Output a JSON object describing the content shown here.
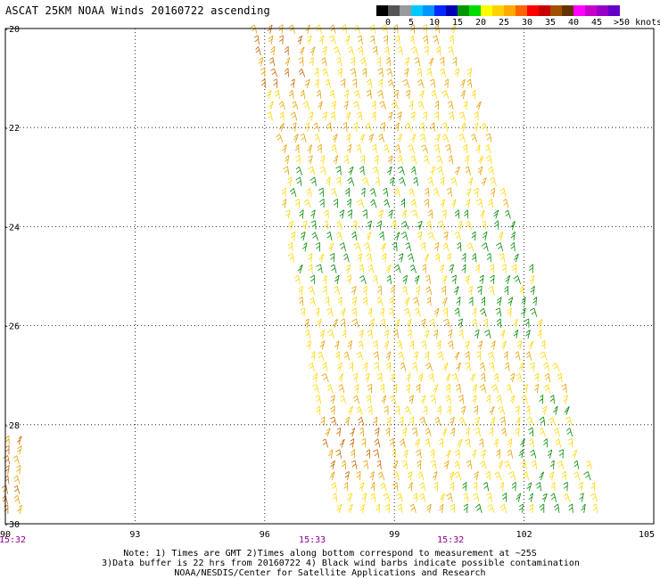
{
  "title": "ASCAT 25KM NOAA Winds 20160722 ascending",
  "colorbar": {
    "colors": [
      "#000000",
      "#555555",
      "#9a9a9a",
      "#00c8ff",
      "#0096ff",
      "#0028ff",
      "#0000b4",
      "#009600",
      "#00dc00",
      "#ffff00",
      "#ffd200",
      "#ffaa00",
      "#ff6400",
      "#ff0000",
      "#c80000",
      "#a05000",
      "#643200",
      "#ff00ff",
      "#c800c8",
      "#9600c8",
      "#6400c8"
    ],
    "ticks": [
      "0",
      "5",
      "10",
      "15",
      "20",
      "25",
      "30",
      "35",
      "40",
      "45",
      ">50 knots"
    ]
  },
  "axes": {
    "lon_ticks": [
      "90",
      "93",
      "96",
      "99",
      "102",
      "105"
    ],
    "lat_ticks": [
      "-20",
      "-22",
      "-24",
      "-26",
      "-28",
      "-30"
    ],
    "lon_range": [
      90,
      105
    ],
    "lat_range": [
      -30,
      -20
    ]
  },
  "time_labels": [
    "15:32",
    "15:33",
    "15:32"
  ],
  "time_label_color": "#8b008b",
  "notes": {
    "line1": "Note: 1) Times are GMT 2)Times along bottom correspond to measurement at ~25S",
    "line2": "3)Data buffer is 22 hrs from 20160722 4) Black wind barbs indicate possible contamination",
    "line3": "NOAA/NESDIS/Center for Satellite Applications and Research"
  },
  "colors": {
    "yellow": "#ffd700",
    "orange": "#e8a000",
    "brown": "#c86400",
    "green": "#008c00",
    "blue": "#0000c8"
  }
}
